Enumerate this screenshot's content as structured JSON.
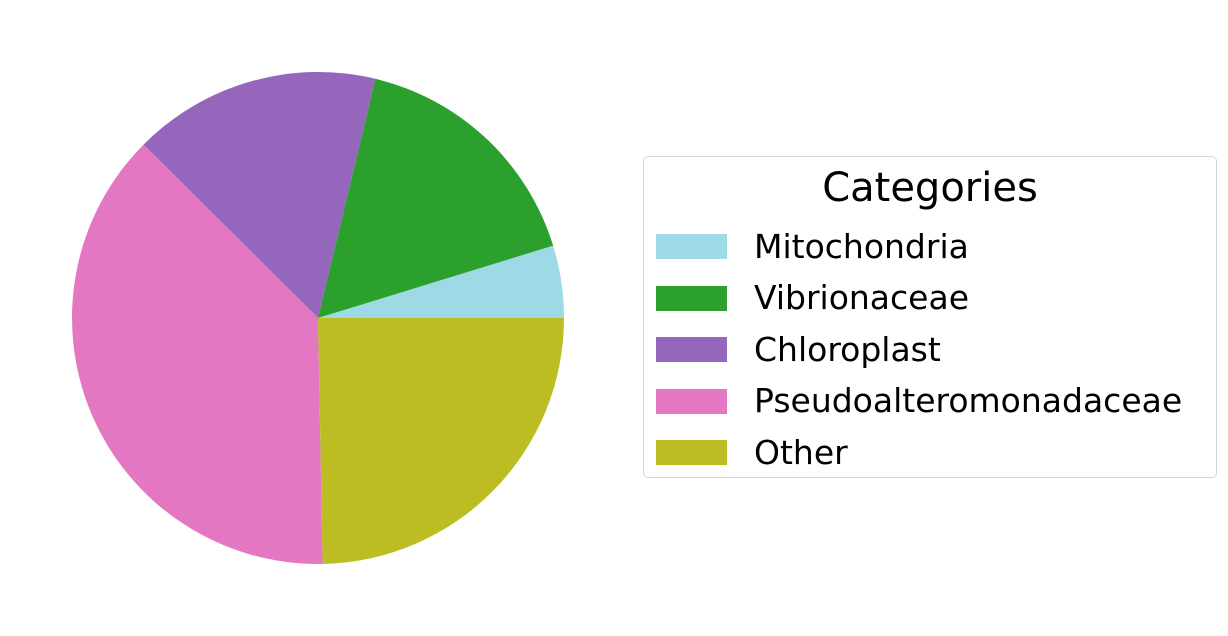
{
  "chart_data": {
    "type": "pie",
    "title": "",
    "legend": {
      "title": "Categories",
      "placement": "right"
    },
    "slices": [
      {
        "label": "Mitochondria",
        "value": 4.75,
        "color": "#9edae5"
      },
      {
        "label": "Vibrionaceae",
        "value": 16.5,
        "color": "#2ca02c"
      },
      {
        "label": "Chloroplast",
        "value": 16.3,
        "color": "#9467bd"
      },
      {
        "label": "Pseudoalteromonadaceae",
        "value": 37.75,
        "color": "#e377c2"
      },
      {
        "label": "Other",
        "value": 24.7,
        "color": "#bcbd22"
      }
    ],
    "start_angle_deg": 0,
    "direction": "counterclockwise"
  }
}
